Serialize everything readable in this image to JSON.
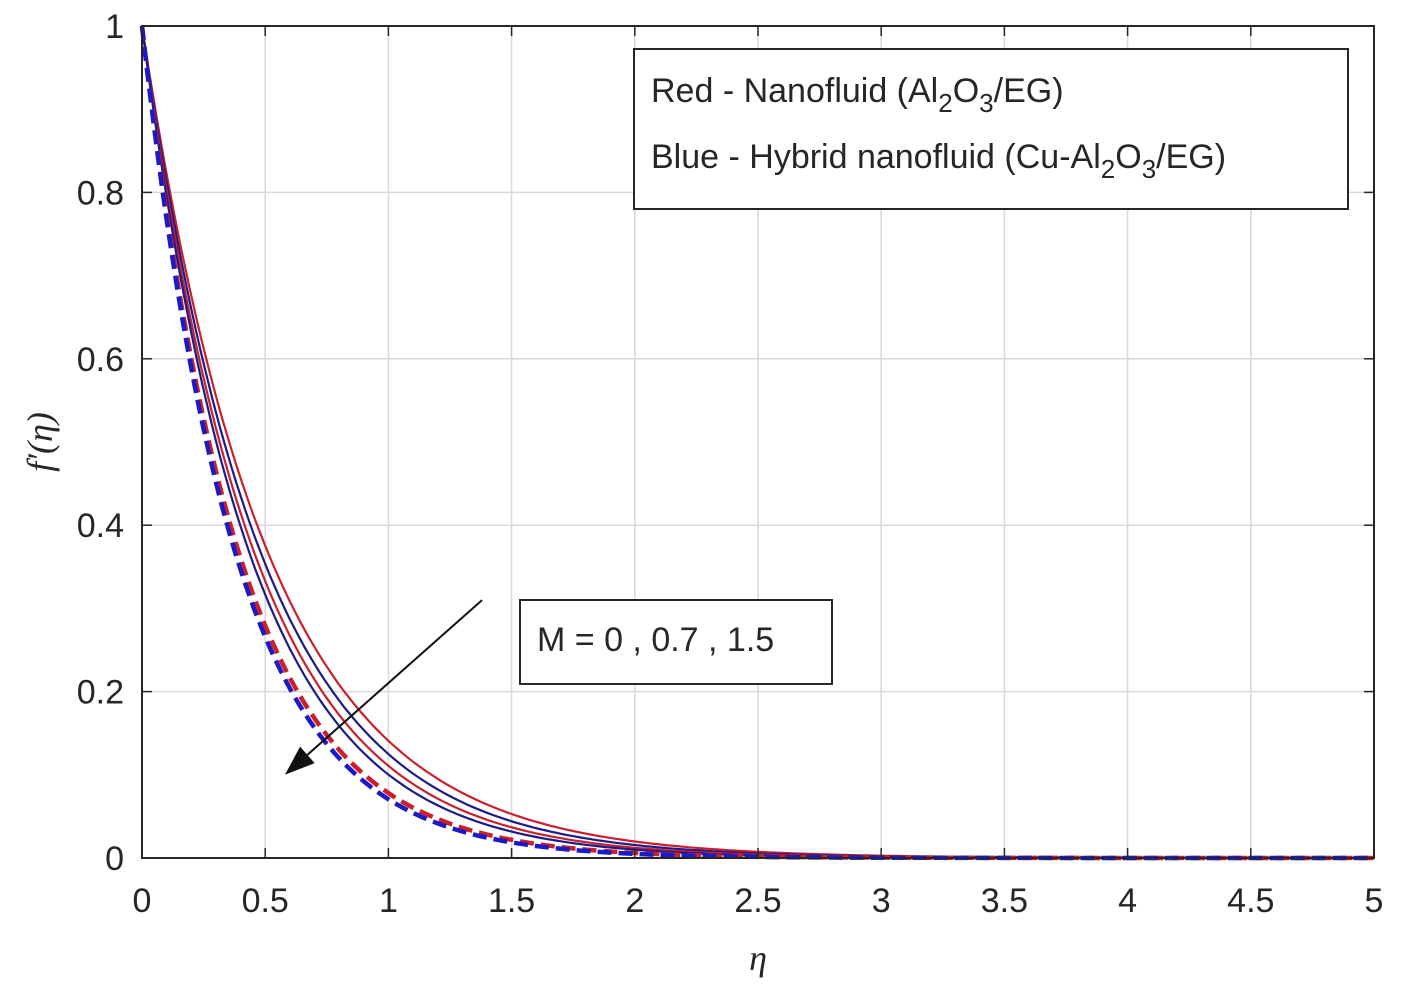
{
  "chart_data": {
    "type": "line",
    "xlabel": "η",
    "ylabel": "f′(η)",
    "xlim": [
      0,
      5
    ],
    "ylim": [
      0,
      1
    ],
    "x_ticks": [
      "0",
      "0.5",
      "1",
      "1.5",
      "2",
      "2.5",
      "3",
      "3.5",
      "4",
      "4.5",
      "5"
    ],
    "y_ticks": [
      "0",
      "0.2",
      "0.4",
      "0.6",
      "0.8",
      "1"
    ],
    "grid": true,
    "legend_position": "top-right",
    "legend": {
      "line1": {
        "prefix": "Red - Nanofluid (Al",
        "sub1": "2",
        "mid": "O",
        "sub2": "3",
        "suffix": "/EG)"
      },
      "line2": {
        "prefix": "Blue - Hybrid nanofluid (Cu-Al",
        "sub1": "2",
        "mid": "O",
        "sub2": "3",
        "suffix": "/EG)"
      }
    },
    "annotation": {
      "text": "M = 0 , 0.7 , 1.5",
      "arrow_from": [
        1.38,
        0.31
      ],
      "arrow_to": [
        0.58,
        0.1
      ]
    },
    "colors": {
      "red": "#cc1f2a",
      "blue": "#1a1ac8",
      "darkblue": "#1b1b8c",
      "grid": "#d9d9d9",
      "axis": "#262626"
    },
    "series": [
      {
        "label": "M = 0",
        "color": "red",
        "style": "solid",
        "decay": 1.96,
        "x": [
          0,
          0.5,
          1,
          1.5,
          2,
          2.5,
          3,
          3.5,
          4,
          5
        ],
        "y": [
          1,
          0.375,
          0.141,
          0.053,
          0.02,
          0.007,
          0.003,
          0.001,
          0.0004,
          0
        ]
      },
      {
        "label": "M = 0",
        "color": "darkblue",
        "style": "solid",
        "decay": 2.08,
        "x": [
          0,
          0.5,
          1,
          1.5,
          2,
          2.5,
          3,
          3.5,
          4,
          5
        ],
        "y": [
          1,
          0.353,
          0.125,
          0.044,
          0.016,
          0.006,
          0.002,
          0.001,
          0.0002,
          0
        ]
      },
      {
        "label": "M = 0.7",
        "color": "red",
        "style": "solid",
        "decay": 2.2,
        "x": [
          0,
          0.5,
          1,
          1.5,
          2,
          2.5,
          3,
          3.5,
          4,
          5
        ],
        "y": [
          1,
          0.333,
          0.111,
          0.037,
          0.012,
          0.004,
          0.001,
          0.0005,
          0.0002,
          0
        ]
      },
      {
        "label": "M = 0.7",
        "color": "darkblue",
        "style": "solid",
        "decay": 2.3,
        "x": [
          0,
          0.5,
          1,
          1.5,
          2,
          2.5,
          3,
          3.5,
          4,
          5
        ],
        "y": [
          1,
          0.317,
          0.1,
          0.032,
          0.01,
          0.003,
          0.001,
          0.0003,
          0.0001,
          0
        ]
      },
      {
        "label": "M = 1.5",
        "color": "red",
        "style": "dashed",
        "decay": 2.55,
        "x": [
          0,
          0.5,
          1,
          1.5,
          2,
          2.5,
          3,
          3.5,
          4,
          5
        ],
        "y": [
          1,
          0.279,
          0.078,
          0.022,
          0.006,
          0.002,
          0.0005,
          0.0001,
          0,
          0
        ]
      },
      {
        "label": "M = 1.5",
        "color": "blue",
        "style": "dashed",
        "decay": 2.65,
        "x": [
          0,
          0.5,
          1,
          1.5,
          2,
          2.5,
          3,
          3.5,
          4,
          5
        ],
        "y": [
          1,
          0.266,
          0.071,
          0.019,
          0.005,
          0.001,
          0.0004,
          0.0001,
          0,
          0
        ]
      }
    ]
  }
}
